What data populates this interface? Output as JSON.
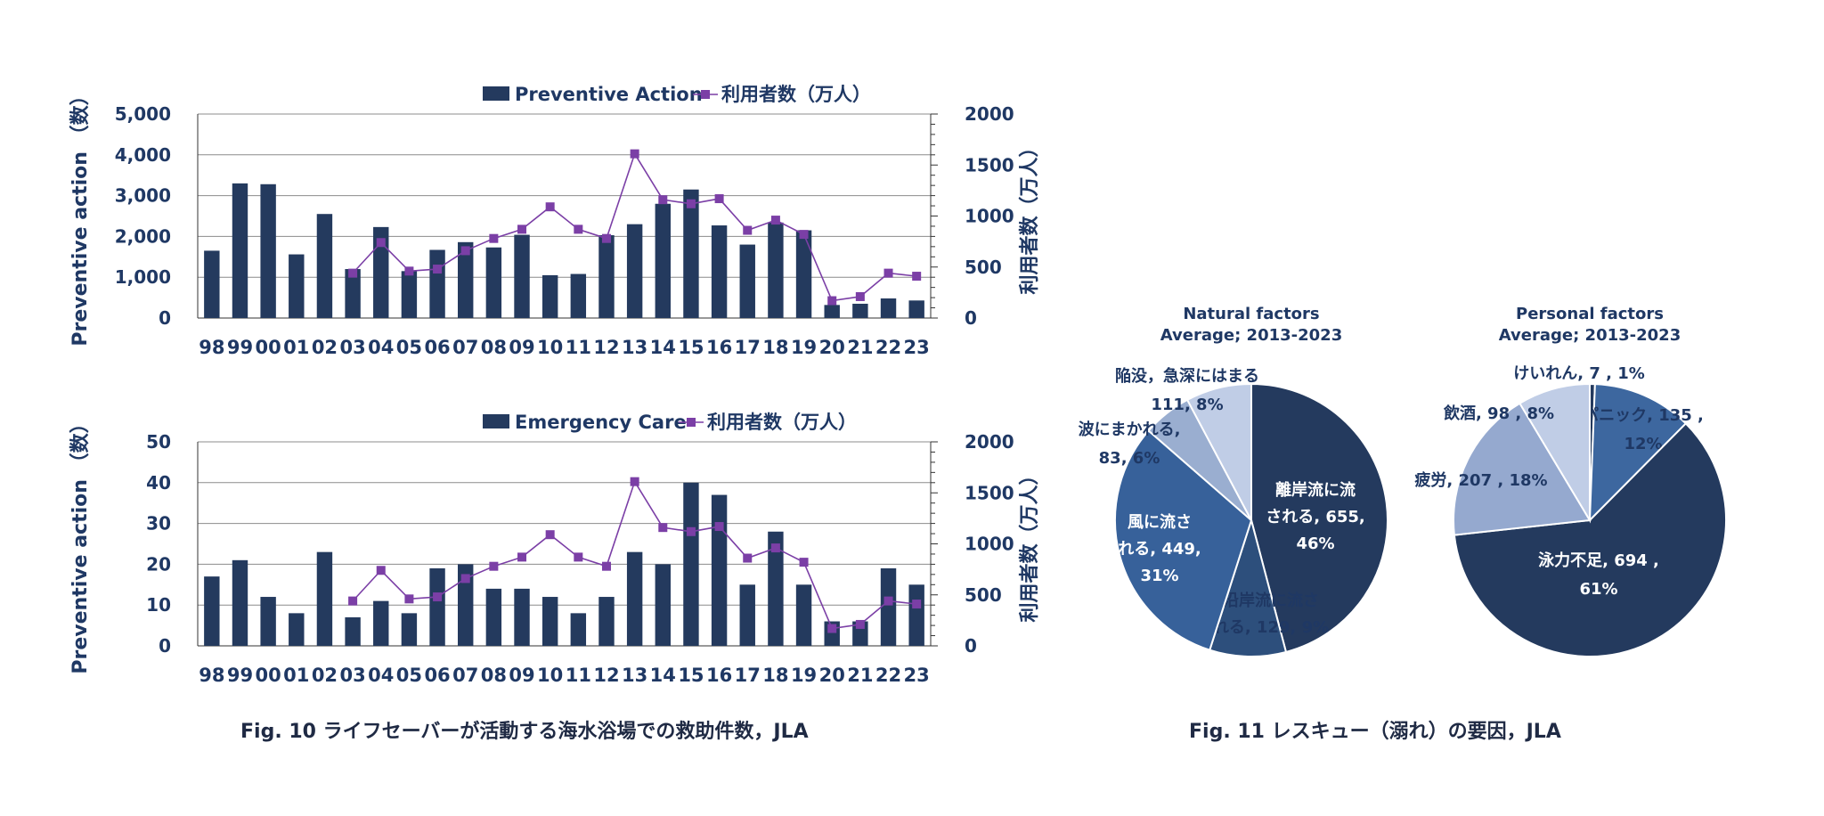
{
  "colors": {
    "bar": "#243a5e",
    "line": "#7b3fa6",
    "text": "#1f3864",
    "grid": "#8c8c8c"
  },
  "captions": {
    "fig10": "Fig. 10  ライフセーバーが活動する海水浴場での救助件数，JLA",
    "fig11": "Fig. 11  レスキュー（溺れ）の要因，JLA"
  },
  "chart_data": [
    {
      "type": "bar",
      "categories": [
        "98",
        "99",
        "00",
        "01",
        "02",
        "03",
        "04",
        "05",
        "06",
        "07",
        "08",
        "09",
        "10",
        "11",
        "12",
        "13",
        "14",
        "15",
        "16",
        "17",
        "18",
        "19",
        "20",
        "21",
        "22",
        "23"
      ],
      "series": [
        {
          "name": "Preventive Action",
          "axis": "left",
          "values": [
            1650,
            3300,
            3280,
            1560,
            2550,
            1200,
            2230,
            1150,
            1670,
            1860,
            1730,
            2040,
            1050,
            1080,
            2030,
            2300,
            2800,
            3150,
            2270,
            1800,
            2340,
            2150,
            320,
            350,
            480,
            430
          ]
        },
        {
          "name": "利用者数（万人）",
          "axis": "right",
          "type": "line",
          "values": [
            null,
            null,
            null,
            null,
            null,
            440,
            740,
            460,
            480,
            660,
            780,
            870,
            1090,
            870,
            780,
            1610,
            1160,
            1120,
            1170,
            860,
            960,
            820,
            170,
            210,
            440,
            410
          ]
        }
      ],
      "ylabel": "Preventive action （数）",
      "y2label": "利用者数（万人）",
      "ylim": [
        0,
        5000
      ],
      "y2lim": [
        0,
        2000
      ],
      "yticks": [
        "0",
        "1,000",
        "2,000",
        "3,000",
        "4,000",
        "5,000"
      ],
      "y2ticks": [
        "0",
        "500",
        "1000",
        "1500",
        "2000"
      ],
      "grid": true,
      "legend": "top-right"
    },
    {
      "type": "bar",
      "categories": [
        "98",
        "99",
        "00",
        "01",
        "02",
        "03",
        "04",
        "05",
        "06",
        "07",
        "08",
        "09",
        "10",
        "11",
        "12",
        "13",
        "14",
        "15",
        "16",
        "17",
        "18",
        "19",
        "20",
        "21",
        "22",
        "23"
      ],
      "series": [
        {
          "name": "Emergency Care",
          "axis": "left",
          "values": [
            17,
            21,
            12,
            8,
            23,
            7,
            11,
            8,
            19,
            20,
            14,
            14,
            12,
            8,
            12,
            23,
            20,
            40,
            37,
            15,
            28,
            15,
            6,
            6,
            19,
            15
          ]
        },
        {
          "name": "利用者数（万人）",
          "axis": "right",
          "type": "line",
          "values": [
            null,
            null,
            null,
            null,
            null,
            440,
            740,
            460,
            480,
            660,
            780,
            870,
            1090,
            870,
            780,
            1610,
            1160,
            1120,
            1170,
            860,
            960,
            820,
            170,
            210,
            440,
            410
          ]
        }
      ],
      "ylabel": "Preventive action （数）",
      "y2label": "利用者数（万人）",
      "ylim": [
        0,
        50
      ],
      "y2lim": [
        0,
        2000
      ],
      "yticks": [
        "0",
        "10",
        "20",
        "30",
        "40",
        "50"
      ],
      "y2ticks": [
        "0",
        "500",
        "1000",
        "1500",
        "2000"
      ],
      "grid": true,
      "legend": "top-right"
    },
    {
      "type": "pie",
      "title": [
        "Natural factors",
        "Average; 2013-2023"
      ],
      "slices": [
        {
          "lines": [
            "離岸流に流",
            "される, 655,",
            "46%"
          ],
          "value": 655,
          "percent": 46,
          "color": "#243a5e",
          "text_color": "#ffffff"
        },
        {
          "lines": [
            "沿岸流に流さ",
            "れる, 129, 9%"
          ],
          "value": 129,
          "percent": 9,
          "color": "#2d4f7c",
          "text_color": "#1f3864"
        },
        {
          "lines": [
            "風に流さ",
            "れる, 449,",
            "31%"
          ],
          "value": 449,
          "percent": 31,
          "color": "#37619a",
          "text_color": "#ffffff"
        },
        {
          "lines": [
            "波にまかれる,",
            "83, 6%"
          ],
          "value": 83,
          "percent": 6,
          "color": "#9aaed0",
          "text_color": "#1f3864"
        },
        {
          "lines": [
            "陥没，急深にはまる",
            "111, 8%"
          ],
          "value": 111,
          "percent": 8,
          "color": "#c0cde6",
          "text_color": "#1f3864"
        }
      ]
    },
    {
      "type": "pie",
      "title": [
        "Personal factors",
        "Average; 2013-2023"
      ],
      "slices": [
        {
          "lines": [
            "けいれん, 7 , 1%"
          ],
          "value": 7,
          "percent": 1,
          "color": "#243a5e",
          "text_color": "#1f3864"
        },
        {
          "lines": [
            "パニック, 135 ,",
            "12%"
          ],
          "value": 135,
          "percent": 12,
          "color": "#3d679f",
          "text_color": "#1f3864"
        },
        {
          "lines": [
            "泳力不足, 694 ,",
            "61%"
          ],
          "value": 694,
          "percent": 61,
          "color": "#243a5e",
          "text_color": "#ffffff"
        },
        {
          "lines": [
            "疲労, 207 , 18%"
          ],
          "value": 207,
          "percent": 18,
          "color": "#95a9cf",
          "text_color": "#1f3864"
        },
        {
          "lines": [
            "飲酒, 98 , 8%"
          ],
          "value": 98,
          "percent": 8,
          "color": "#c0cde6",
          "text_color": "#1f3864"
        }
      ]
    }
  ]
}
